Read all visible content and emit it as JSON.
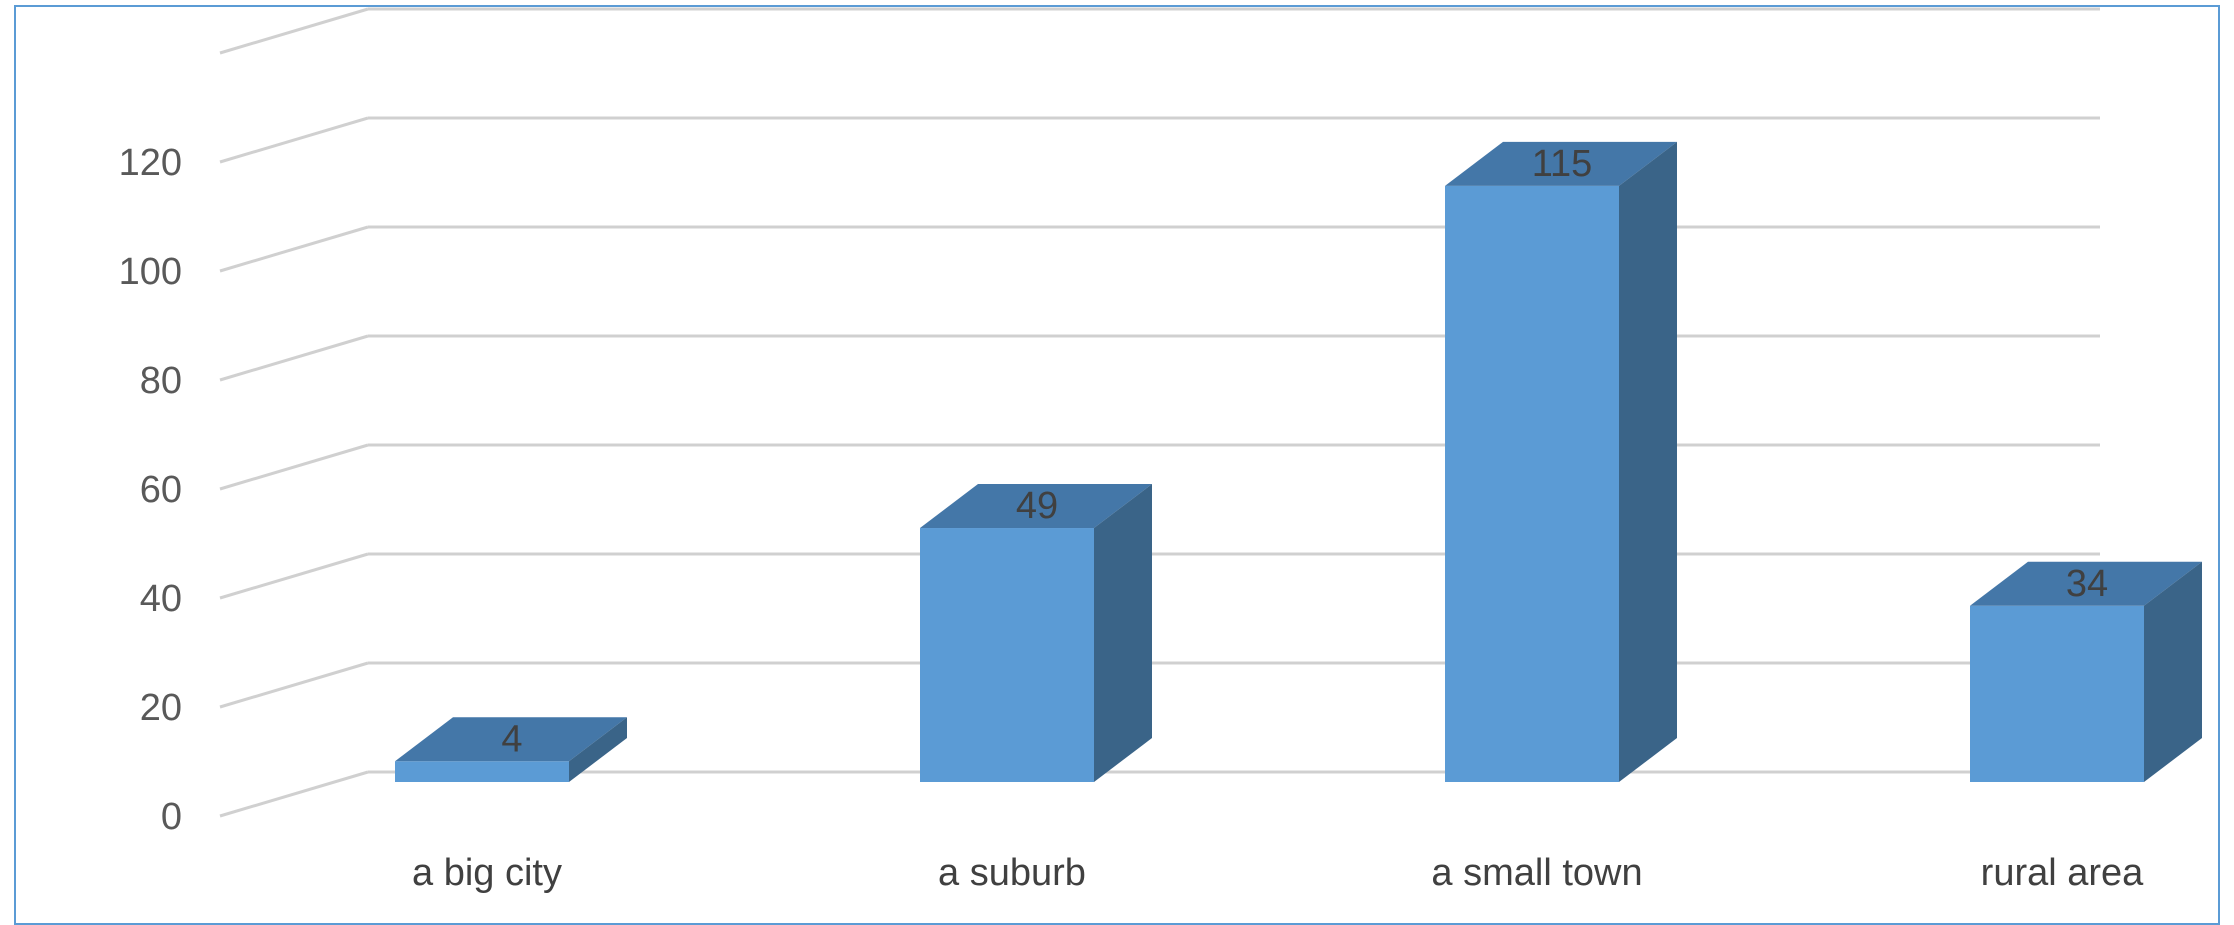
{
  "chart_data": {
    "type": "bar",
    "style": "3d-column",
    "categories": [
      "a big city",
      "a suburb",
      "a small town",
      "rural area"
    ],
    "values": [
      4,
      49,
      115,
      34
    ],
    "data_labels": [
      "4",
      "49",
      "115",
      "34"
    ],
    "ylim": [
      0,
      120
    ],
    "yticks": [
      0,
      20,
      40,
      60,
      80,
      100,
      120
    ],
    "ytick_labels": [
      "0",
      "20",
      "40",
      "60",
      "80",
      "100",
      "120"
    ],
    "grid": true,
    "legend": "none",
    "colors": {
      "bar_front": "#5B9BD5",
      "bar_top": "#4477A8",
      "bar_side": "#3A6488",
      "grid": "#D0D0D0",
      "frame": "#5B9BD5"
    }
  }
}
